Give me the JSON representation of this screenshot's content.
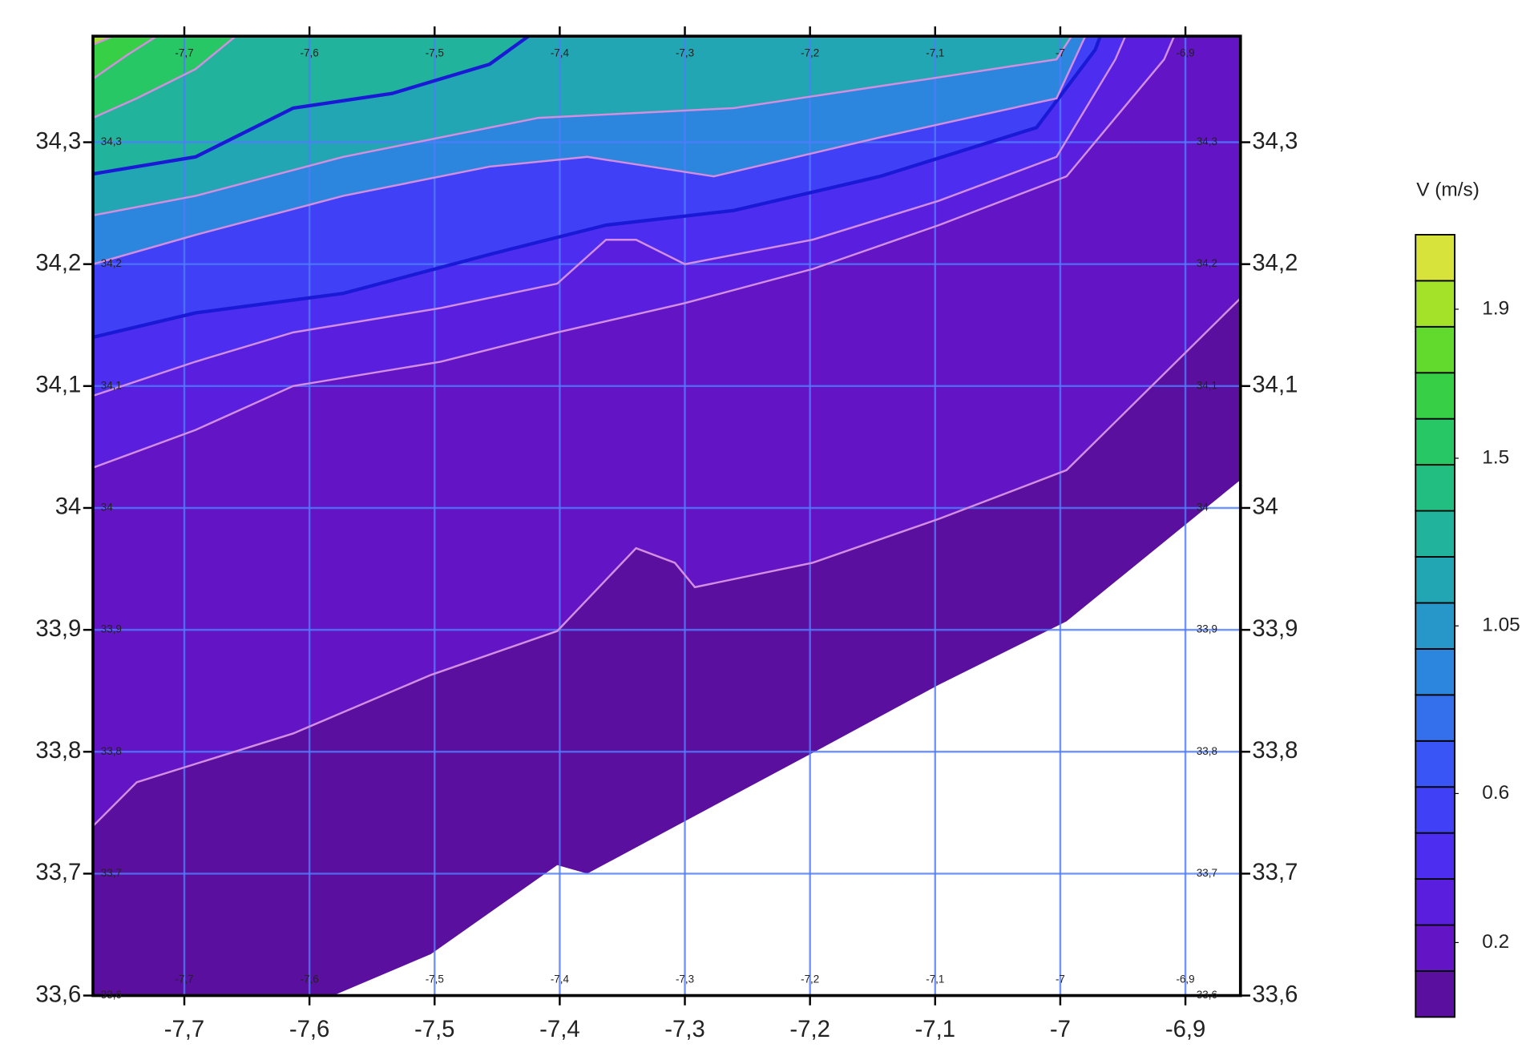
{
  "chart_data": {
    "type": "contour",
    "xlim": [
      -7.773,
      -6.856
    ],
    "ylim": [
      33.6,
      34.387
    ],
    "xticks": [
      {
        "value": -7.7,
        "label": "-7,7"
      },
      {
        "value": -7.6,
        "label": "-7,6"
      },
      {
        "value": -7.5,
        "label": "-7,5"
      },
      {
        "value": -7.4,
        "label": "-7,4"
      },
      {
        "value": -7.3,
        "label": "-7,3"
      },
      {
        "value": -7.2,
        "label": "-7,2"
      },
      {
        "value": -7.1,
        "label": "-7,1"
      },
      -7,
      {
        "value": -6.9,
        "label": "-6,9"
      }
    ],
    "yticks": [
      {
        "value": 33.6,
        "label": "33,6"
      },
      {
        "value": 33.7,
        "label": "33,7"
      },
      {
        "value": 33.8,
        "label": "33,8"
      },
      {
        "value": 33.9,
        "label": "33,9"
      },
      34,
      {
        "value": 34.1,
        "label": "34,1"
      },
      {
        "value": 34.2,
        "label": "34,2"
      },
      {
        "value": 34.3,
        "label": "34,3"
      }
    ],
    "grid": true,
    "grid_color": "#4f7cff",
    "contour_line_color": "#d48ee0",
    "bold_line_color": "#1a1ad6",
    "colorbar": {
      "title": "V (m/s)",
      "clim": [
        0,
        2.1
      ],
      "ticks": [
        0.2,
        0.6,
        1.05,
        1.5,
        1.9
      ],
      "colors": [
        "#5a0f9e",
        "#6314c4",
        "#5a1fde",
        "#4d2ef0",
        "#4040f7",
        "#3a55f5",
        "#3570ec",
        "#2d86de",
        "#2797c9",
        "#23a6b3",
        "#21b39b",
        "#22bd80",
        "#27c766",
        "#36cf45",
        "#62da2d",
        "#a4e22a",
        "#d7e23a"
      ]
    },
    "contours": [
      {
        "level": 0,
        "bold": false,
        "lon": [
          -7.581,
          -7.503,
          -7.402,
          -7.378,
          -7.3,
          -7.198,
          -7.097,
          -6.995,
          -6.856
        ],
        "lat": [
          33.6,
          33.634,
          33.707,
          33.7,
          33.743,
          33.799,
          33.855,
          33.907,
          34.023
        ]
      },
      {
        "level": 0.13,
        "bold": false,
        "lon": [
          -7.773,
          -7.738,
          -7.613,
          -7.503,
          -7.402,
          -7.339,
          -7.308,
          -7.292,
          -7.198,
          -7.097,
          -6.995,
          -6.856
        ],
        "lat": [
          33.739,
          33.775,
          33.815,
          33.863,
          33.899,
          33.967,
          33.955,
          33.935,
          33.955,
          33.991,
          34.031,
          34.172
        ]
      },
      {
        "level": 0.26,
        "bold": false,
        "lon": [
          -7.773,
          -7.691,
          -7.613,
          -7.495,
          -7.402,
          -7.3,
          -7.198,
          -7.097,
          -6.995,
          -6.917,
          -6.909
        ],
        "lat": [
          34.033,
          34.064,
          34.1,
          34.12,
          34.144,
          34.168,
          34.196,
          34.232,
          34.272,
          34.368,
          34.387
        ]
      },
      {
        "level": 0.38,
        "bold": false,
        "lon": [
          -7.773,
          -7.691,
          -7.613,
          -7.495,
          -7.402,
          -7.363,
          -7.339,
          -7.3,
          -7.198,
          -7.097,
          -7.003,
          -6.956,
          -6.948
        ],
        "lat": [
          34.092,
          34.12,
          34.144,
          34.164,
          34.184,
          34.22,
          34.22,
          34.2,
          34.22,
          34.252,
          34.288,
          34.368,
          34.387
        ]
      },
      {
        "level": 0.55,
        "bold": true,
        "lon": [
          -7.773,
          -7.691,
          -7.573,
          -7.456,
          -7.363,
          -7.261,
          -7.144,
          -7.019,
          -6.972,
          -6.968
        ],
        "lat": [
          34.14,
          34.16,
          34.176,
          34.208,
          34.232,
          34.244,
          34.272,
          34.312,
          34.376,
          34.387
        ]
      },
      {
        "level": 0.9,
        "bold": false,
        "lon": [
          -7.773,
          -7.691,
          -7.573,
          -7.456,
          -7.378,
          -7.277,
          -7.144,
          -7.003,
          -6.98
        ],
        "lat": [
          34.2,
          34.224,
          34.256,
          34.28,
          34.288,
          34.272,
          34.304,
          34.336,
          34.387
        ]
      },
      {
        "level": 1.13,
        "bold": false,
        "lon": [
          -7.773,
          -7.691,
          -7.573,
          -7.417,
          -7.261,
          -7.105,
          -7.003,
          -6.991
        ],
        "lat": [
          34.24,
          34.256,
          34.288,
          34.32,
          34.328,
          34.352,
          34.368,
          34.387
        ]
      },
      {
        "level": 1.25,
        "bold": true,
        "lon": [
          -7.773,
          -7.691,
          -7.613,
          -7.534,
          -7.456,
          -7.425
        ],
        "lat": [
          34.274,
          34.288,
          34.328,
          34.34,
          34.364,
          34.387
        ]
      },
      {
        "level": 1.5,
        "bold": false,
        "lon": [
          -7.773,
          -7.738,
          -7.691,
          -7.659
        ],
        "lat": [
          34.32,
          34.336,
          34.36,
          34.387
        ]
      },
      {
        "level": 1.63,
        "bold": false,
        "lon": [
          -7.773,
          -7.745,
          -7.722
        ],
        "lat": [
          34.352,
          34.372,
          34.387
        ]
      },
      {
        "level": 1.87,
        "bold": false,
        "lon": [
          -7.773,
          -7.757
        ],
        "lat": [
          34.38,
          34.387
        ]
      }
    ]
  }
}
